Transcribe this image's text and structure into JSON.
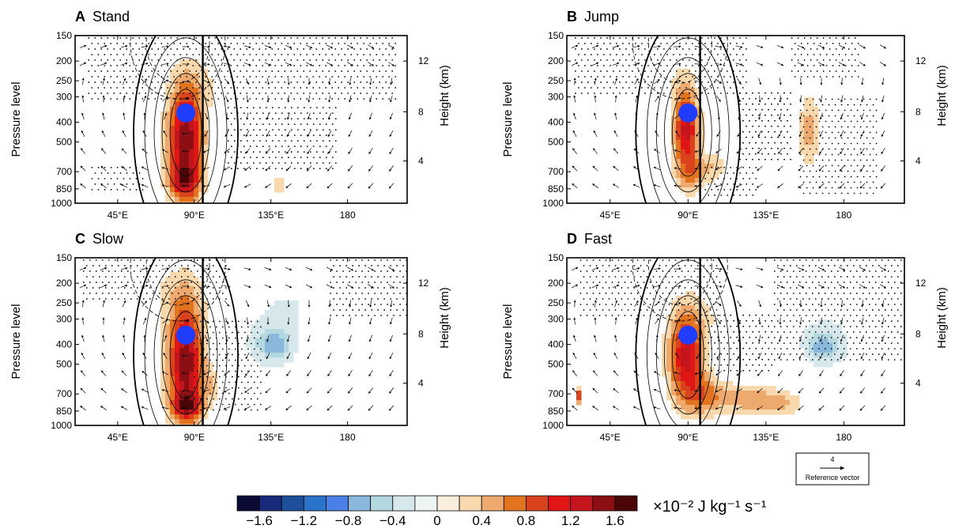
{
  "chart_data": [
    {
      "type": "heatmap",
      "panel_letter": "A",
      "title": "Stand",
      "xlabel": "",
      "ylabel": "Pressure level",
      "ylabel_right": "Height (km)",
      "x_ticks": [
        "45°E",
        "90°E",
        "135°E",
        "180"
      ],
      "x_tick_values": [
        45,
        90,
        135,
        180
      ],
      "xlim": [
        20,
        215
      ],
      "y_ticks": [
        "150",
        "200",
        "250",
        "300",
        "400",
        "500",
        "700",
        "850",
        "1000"
      ],
      "y_tick_values": [
        150,
        200,
        250,
        300,
        400,
        500,
        700,
        850,
        1000
      ],
      "ylim": [
        1000,
        150
      ],
      "y_scale": "log",
      "right_ticks": [
        "12",
        "8",
        "4"
      ],
      "right_tick_pressures": [
        200,
        355,
        620
      ],
      "vertical_line_lon": 95,
      "heating_center": {
        "lon": 85,
        "pressure": 360
      },
      "blobs": [
        {
          "lon": 85,
          "pressure": 490,
          "value": 1.6,
          "spread_lon": 7,
          "spread_p": 0.45
        },
        {
          "lon": 84,
          "pressure": 780,
          "value": 0.8,
          "spread_lon": 6,
          "spread_p": 0.12
        },
        {
          "lon": 140,
          "pressure": 820,
          "value": 0.4,
          "spread_lon": 3,
          "spread_p": 0.06
        },
        {
          "lon": 98,
          "pressure": 260,
          "value": 0.15,
          "spread_lon": 10,
          "spread_p": 0.2
        }
      ],
      "stipple_regions": [
        {
          "lon": [
            28,
            210
          ],
          "pressure": [
            150,
            320
          ]
        },
        {
          "lon": [
            110,
            175
          ],
          "pressure": [
            330,
            700
          ]
        },
        {
          "lon": [
            30,
            60
          ],
          "pressure": [
            650,
            900
          ]
        }
      ]
    },
    {
      "type": "heatmap",
      "panel_letter": "B",
      "title": "Jump",
      "xlabel": "",
      "ylabel": "Pressure level",
      "ylabel_right": "Height (km)",
      "x_ticks": [
        "45°E",
        "90°E",
        "135°E",
        "180"
      ],
      "x_tick_values": [
        45,
        90,
        135,
        180
      ],
      "xlim": [
        20,
        215
      ],
      "y_ticks": [
        "150",
        "200",
        "250",
        "300",
        "400",
        "500",
        "700",
        "850",
        "1000"
      ],
      "y_tick_values": [
        150,
        200,
        250,
        300,
        400,
        500,
        700,
        850,
        1000
      ],
      "ylim": [
        1000,
        150
      ],
      "y_scale": "log",
      "right_ticks": [
        "12",
        "8",
        "4"
      ],
      "right_tick_pressures": [
        200,
        355,
        620
      ],
      "vertical_line_lon": 97,
      "heating_center": {
        "lon": 90,
        "pressure": 360
      },
      "blobs": [
        {
          "lon": 89,
          "pressure": 440,
          "value": 1.3,
          "spread_lon": 5,
          "spread_p": 0.3
        },
        {
          "lon": 92,
          "pressure": 720,
          "value": 0.5,
          "spread_lon": 6,
          "spread_p": 0.15
        },
        {
          "lon": 105,
          "pressure": 660,
          "value": 0.35,
          "spread_lon": 5,
          "spread_p": 0.12
        },
        {
          "lon": 160,
          "pressure": 440,
          "value": 0.5,
          "spread_lon": 4,
          "spread_p": 0.3
        },
        {
          "lon": 86,
          "pressure": 260,
          "value": 0.2,
          "spread_lon": 6,
          "spread_p": 0.2
        }
      ],
      "stipple_regions": [
        {
          "lon": [
            25,
            125
          ],
          "pressure": [
            150,
            300
          ]
        },
        {
          "lon": [
            150,
            190
          ],
          "pressure": [
            150,
            250
          ]
        },
        {
          "lon": [
            120,
            150
          ],
          "pressure": [
            280,
            620
          ]
        },
        {
          "lon": [
            155,
            200
          ],
          "pressure": [
            300,
            950
          ]
        },
        {
          "lon": [
            100,
            130
          ],
          "pressure": [
            650,
            950
          ]
        }
      ]
    },
    {
      "type": "heatmap",
      "panel_letter": "C",
      "title": "Slow",
      "xlabel": "",
      "ylabel": "Pressure level",
      "ylabel_right": "Height (km)",
      "x_ticks": [
        "45°E",
        "90°E",
        "135°E",
        "180"
      ],
      "x_tick_values": [
        45,
        90,
        135,
        180
      ],
      "xlim": [
        20,
        215
      ],
      "y_ticks": [
        "150",
        "200",
        "250",
        "300",
        "400",
        "500",
        "700",
        "850",
        "1000"
      ],
      "y_tick_values": [
        150,
        200,
        250,
        300,
        400,
        500,
        700,
        850,
        1000
      ],
      "ylim": [
        1000,
        150
      ],
      "y_scale": "log",
      "right_ticks": [
        "12",
        "8",
        "4"
      ],
      "right_tick_pressures": [
        200,
        355,
        620
      ],
      "vertical_line_lon": 95,
      "heating_center": {
        "lon": 85,
        "pressure": 360
      },
      "blobs": [
        {
          "lon": 85,
          "pressure": 500,
          "value": 1.6,
          "spread_lon": 7,
          "spread_p": 0.45
        },
        {
          "lon": 86,
          "pressure": 800,
          "value": 0.9,
          "spread_lon": 6,
          "spread_p": 0.1
        },
        {
          "lon": 80,
          "pressure": 230,
          "value": 0.25,
          "spread_lon": 12,
          "spread_p": 0.25
        },
        {
          "lon": 100,
          "pressure": 640,
          "value": 0.3,
          "spread_lon": 4,
          "spread_p": 0.12
        },
        {
          "lon": 137,
          "pressure": 400,
          "value": -0.55,
          "spread_lon": 7,
          "spread_p": 0.12
        },
        {
          "lon": 135,
          "pressure": 360,
          "value": -0.25,
          "spread_lon": 14,
          "spread_p": 0.35
        },
        {
          "lon": 150,
          "pressure": 240,
          "value": -0.12,
          "spread_lon": 10,
          "spread_p": 0.25
        }
      ],
      "stipple_regions": [
        {
          "lon": [
            25,
            110
          ],
          "pressure": [
            150,
            250
          ]
        },
        {
          "lon": [
            90,
            130
          ],
          "pressure": [
            300,
            850
          ]
        },
        {
          "lon": [
            170,
            215
          ],
          "pressure": [
            150,
            300
          ]
        }
      ]
    },
    {
      "type": "heatmap",
      "panel_letter": "D",
      "title": "Fast",
      "xlabel": "",
      "ylabel": "Pressure level",
      "ylabel_right": "Height (km)",
      "x_ticks": [
        "45°E",
        "90°E",
        "135°E",
        "180"
      ],
      "x_tick_values": [
        45,
        90,
        135,
        180
      ],
      "xlim": [
        20,
        215
      ],
      "y_ticks": [
        "150",
        "200",
        "250",
        "300",
        "400",
        "500",
        "700",
        "850",
        "1000"
      ],
      "y_tick_values": [
        150,
        200,
        250,
        300,
        400,
        500,
        700,
        850,
        1000
      ],
      "ylim": [
        1000,
        150
      ],
      "y_scale": "log",
      "right_ticks": [
        "12",
        "8",
        "4"
      ],
      "right_tick_pressures": [
        200,
        355,
        620
      ],
      "vertical_line_lon": 97,
      "heating_center": {
        "lon": 90,
        "pressure": 360
      },
      "blobs": [
        {
          "lon": 89,
          "pressure": 460,
          "value": 1.3,
          "spread_lon": 7,
          "spread_p": 0.35
        },
        {
          "lon": 100,
          "pressure": 720,
          "value": 0.6,
          "spread_lon": 8,
          "spread_p": 0.15
        },
        {
          "lon": 125,
          "pressure": 740,
          "value": 0.55,
          "spread_lon": 12,
          "spread_p": 0.12
        },
        {
          "lon": 145,
          "pressure": 780,
          "value": 0.35,
          "spread_lon": 8,
          "spread_p": 0.1
        },
        {
          "lon": 100,
          "pressure": 280,
          "value": 0.15,
          "spread_lon": 12,
          "spread_p": 0.2
        },
        {
          "lon": 168,
          "pressure": 410,
          "value": -0.55,
          "spread_lon": 6,
          "spread_p": 0.1
        },
        {
          "lon": 170,
          "pressure": 380,
          "value": -0.25,
          "spread_lon": 14,
          "spread_p": 0.3
        },
        {
          "lon": 27,
          "pressure": 720,
          "value": 1.0,
          "spread_lon": 1.2,
          "spread_p": 0.06
        }
      ],
      "stipple_regions": [
        {
          "lon": [
            28,
            110
          ],
          "pressure": [
            150,
            300
          ]
        },
        {
          "lon": [
            140,
            215
          ],
          "pressure": [
            150,
            500
          ]
        },
        {
          "lon": [
            100,
            140
          ],
          "pressure": [
            280,
            550
          ]
        }
      ]
    }
  ],
  "reference_vector": {
    "value": "4",
    "label": "Reference vector"
  },
  "colorbar": {
    "ticks": [
      "−1.6",
      "−1.2",
      "−0.8",
      "−0.4",
      "0",
      "0.4",
      "0.8",
      "1.2",
      "1.6"
    ],
    "unit_label": "×10⁻² J kg⁻¹ s⁻¹",
    "levels": [
      -1.8,
      -1.6,
      -1.4,
      -1.2,
      -1.0,
      -0.8,
      -0.6,
      -0.4,
      -0.2,
      0,
      0.2,
      0.4,
      0.6,
      0.8,
      1.0,
      1.2,
      1.4,
      1.6,
      1.8
    ],
    "colors": [
      "#0a0a35",
      "#1a2a7a",
      "#1e4f9a",
      "#2a73c8",
      "#4a7fe6",
      "#8ab8dc",
      "#b4d8df",
      "#d6e8ec",
      "#eef6f4",
      "#fbeedd",
      "#f8d9ad",
      "#eeaa6e",
      "#e3741f",
      "#d8421c",
      "#e01616",
      "#c4141c",
      "#8c0f14",
      "#4a0606"
    ],
    "heating_marker_color": "#1f3cff"
  }
}
